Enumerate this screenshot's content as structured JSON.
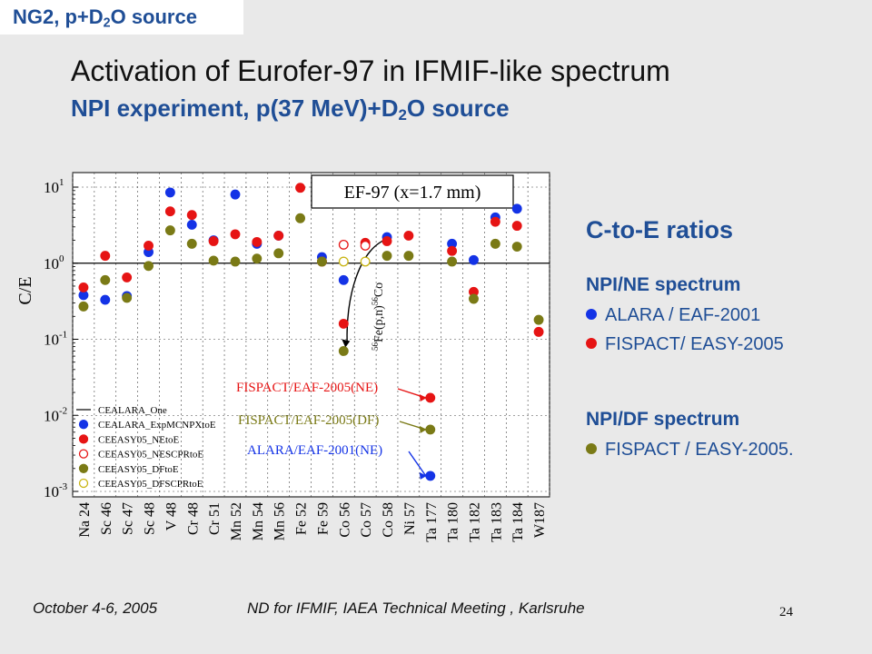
{
  "header_tag": {
    "prefix": "NG2, p+D",
    "sub": "2",
    "suffix": "O source"
  },
  "title": "Activation of Eurofer-97 in IFMIF-like spectrum",
  "subtitle": {
    "prefix": "NPI experiment, p(37 MeV)+D",
    "sub": "2",
    "suffix": "O source"
  },
  "side_panel": {
    "title": "C-to-E ratios",
    "group1": "NPI/NE spectrum",
    "item1": "ALARA / EAF-2001",
    "item2": "FISPACT/ EASY-2005",
    "group2": "NPI/DF spectrum",
    "item3": "FISPACT / EASY-2005."
  },
  "colors": {
    "blue": "#1433e6",
    "red": "#e61414",
    "olive": "#7a7a16",
    "brand_blue": "#1f4e96"
  },
  "footer": {
    "date": "October 4-6, 2005",
    "event": "ND for IFMIF, IAEA Technical Meeting , Karlsruhe",
    "page": "24"
  },
  "chart_data": {
    "type": "scatter",
    "inset_title": "EF-97 (x=1.7 mm)",
    "ylabel": "C/E",
    "yscale": "log",
    "ylim": [
      0.001,
      10
    ],
    "yticks": [
      {
        "v": 10,
        "m": "10",
        "e": "1"
      },
      {
        "v": 1,
        "m": "10",
        "e": "0"
      },
      {
        "v": 0.1,
        "m": "10",
        "e": "-1"
      },
      {
        "v": 0.01,
        "m": "10",
        "e": "-2"
      },
      {
        "v": 0.001,
        "m": "10",
        "e": "-3"
      }
    ],
    "categories": [
      "Na 24",
      "Sc 46",
      "Sc 47",
      "Sc 48",
      "V 48",
      "Cr 48",
      "Cr 51",
      "Mn 52",
      "Mn 54",
      "Mn 56",
      "Fe 52",
      "Fe 59",
      "Co 56",
      "Co 57",
      "Co 58",
      "Ni 57",
      "Ta 177",
      "Ta 180",
      "Ta 182",
      "Ta 183",
      "Ta 184",
      "W187"
    ],
    "reference_line": 1,
    "grid": true,
    "legend": [
      "CEALARA_One",
      "CEALARA_ExpMCNPXtoE",
      "CEEASY05_NEtoE",
      "CEEASY05_NESCPRtoE",
      "CEEASY05_DFtoE",
      "CEEASY05_DFSCPRtoE"
    ],
    "series": [
      {
        "name": "CEALARA_ExpMCNPXtoE",
        "color": "#1433e6",
        "filled": true,
        "values": [
          0.38,
          0.33,
          0.37,
          1.4,
          8.5,
          3.2,
          2.0,
          8.0,
          1.8,
          2.3,
          null,
          1.2,
          0.6,
          null,
          2.2,
          null,
          0.0016,
          1.8,
          1.1,
          4.0,
          5.2,
          null
        ]
      },
      {
        "name": "CEEASY05_NEtoE",
        "color": "#e61414",
        "filled": true,
        "values": [
          0.48,
          1.25,
          0.65,
          1.7,
          4.8,
          4.3,
          1.95,
          2.4,
          1.9,
          2.3,
          9.8,
          1.05,
          0.16,
          1.85,
          1.95,
          2.3,
          0.017,
          1.45,
          0.42,
          3.5,
          3.1,
          0.125
        ]
      },
      {
        "name": "CEEASY05_NESCPRtoE",
        "color": "#e61414",
        "filled": false,
        "values": [
          null,
          null,
          null,
          null,
          null,
          null,
          null,
          null,
          null,
          null,
          null,
          null,
          1.75,
          1.7,
          null,
          null,
          null,
          null,
          null,
          null,
          null,
          null
        ]
      },
      {
        "name": "CEEASY05_DFtoE",
        "color": "#7a7a16",
        "filled": true,
        "values": [
          0.27,
          0.6,
          0.35,
          0.92,
          2.7,
          1.8,
          1.08,
          1.05,
          1.15,
          1.35,
          3.9,
          1.05,
          0.07,
          null,
          1.25,
          1.25,
          0.0065,
          1.05,
          0.34,
          1.8,
          1.65,
          0.18
        ]
      },
      {
        "name": "CEEASY05_DFSCPRtoE",
        "color": "#c9b514",
        "filled": false,
        "values": [
          null,
          null,
          null,
          null,
          null,
          null,
          null,
          null,
          null,
          null,
          null,
          null,
          1.05,
          1.05,
          null,
          null,
          null,
          null,
          null,
          null,
          null,
          null
        ]
      }
    ],
    "annotations": [
      {
        "id": "ann-ne",
        "text": "FISPACT/EAF-2005(NE)",
        "color": "#e61414",
        "target": {
          "category": "Ta 177",
          "value": 0.017
        }
      },
      {
        "id": "ann-df",
        "text": "FISPACT/EAF-2005(DF)",
        "color": "#7a7a16",
        "target": {
          "category": "Ta 177",
          "value": 0.0065
        }
      },
      {
        "id": "ann-alara",
        "text": "ALARA/EAF-2001(NE)",
        "color": "#1433e6",
        "target": {
          "category": "Ta 177",
          "value": 0.0016
        }
      },
      {
        "id": "ann-co56",
        "text_pre": "56",
        "text_mid": "Fe(p,n)",
        "text_post": "56",
        "text_end": "Co",
        "color": "#111111",
        "target": {
          "category": "Co 56",
          "value": 0.07
        }
      }
    ]
  }
}
